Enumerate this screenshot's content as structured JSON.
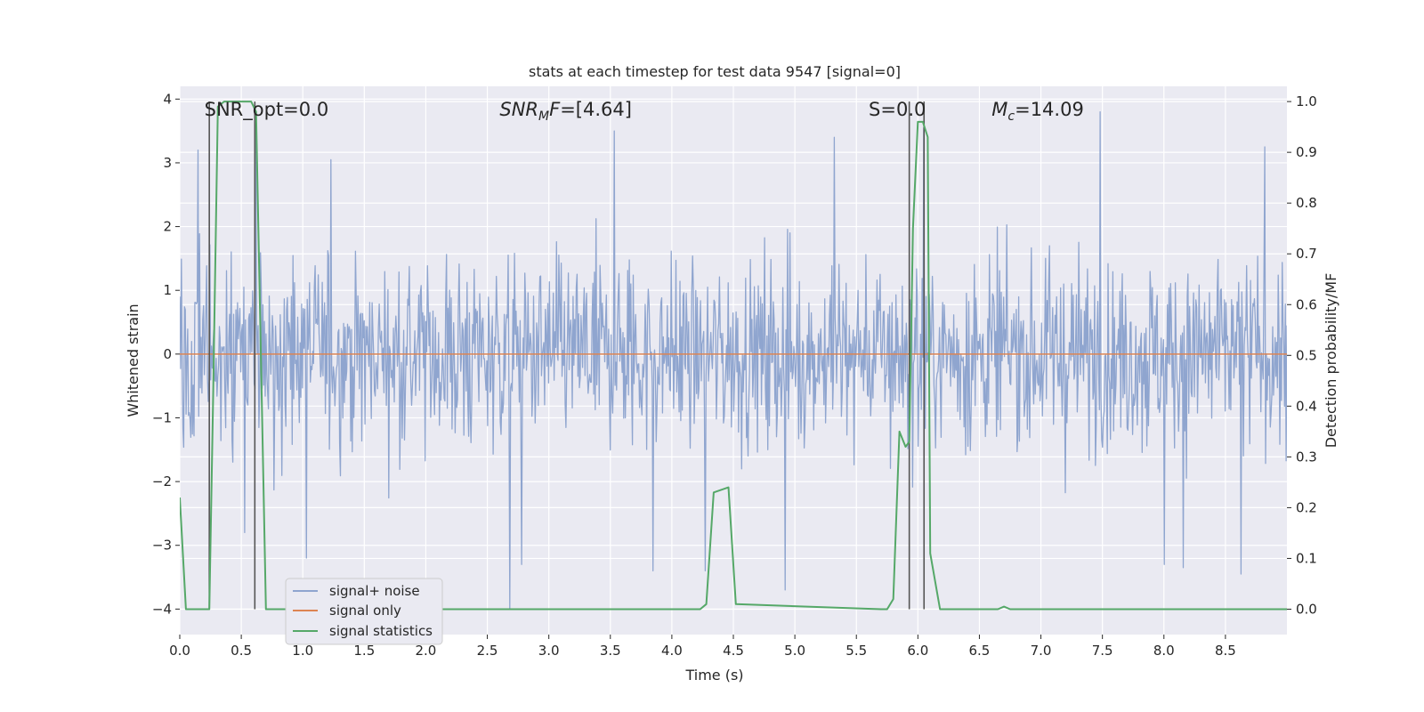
{
  "chart_data": {
    "type": "line",
    "title": "stats at each timestep for test data 9547 [signal=0]",
    "xlabel": "Time (s)",
    "ylabel_left": "Whitened strain",
    "ylabel_right": "Detection probability/MF",
    "xlim": [
      0.0,
      9.0
    ],
    "ylim_left": [
      -4.4,
      4.2
    ],
    "ylim_right": [
      -0.05,
      1.03
    ],
    "x_ticks": [
      0.0,
      0.5,
      1.0,
      1.5,
      2.0,
      2.5,
      3.0,
      3.5,
      4.0,
      4.5,
      5.0,
      5.5,
      6.0,
      6.5,
      7.0,
      7.5,
      8.0,
      8.5
    ],
    "x_tick_labels": [
      "0.0",
      "0.5",
      "1.0",
      "1.5",
      "2.0",
      "2.5",
      "3.0",
      "3.5",
      "4.0",
      "4.5",
      "5.0",
      "5.5",
      "6.0",
      "6.5",
      "7.0",
      "7.5",
      "8.0",
      "8.5"
    ],
    "y_left_ticks": [
      4,
      3,
      2,
      1,
      0,
      -1,
      -2,
      -3,
      -4
    ],
    "y_left_tick_labels": [
      "4",
      "3",
      "2",
      "1",
      "0",
      "−1",
      "−2",
      "−3",
      "−4"
    ],
    "y_right_ticks": [
      1.0,
      0.9,
      0.8,
      0.7,
      0.6,
      0.5,
      0.4,
      0.3,
      0.2,
      0.1,
      0.0
    ],
    "y_right_tick_labels": [
      "1.0",
      "0.9",
      "0.8",
      "0.7",
      "0.6",
      "0.5",
      "0.4",
      "0.3",
      "0.2",
      "0.1",
      "0.0"
    ],
    "grid": true,
    "legend_position": "lower-left",
    "colors": {
      "noise": "#8fa5cf",
      "signal": "#dd8452",
      "stats": "#55a868",
      "vline": "#555555",
      "background": "#eaeaf2",
      "grid": "#ffffff"
    },
    "annotations": [
      {
        "text": "SNR_opt=0.0",
        "x": 0.2,
        "y": 3.85
      },
      {
        "base": "SNR",
        "sub": "M",
        "rest": "F=[4.64]",
        "x": 2.6,
        "y": 3.85
      },
      {
        "text": "S=0.0",
        "x": 5.6,
        "y": 3.85
      },
      {
        "base": "M",
        "sub": "c",
        "rest": "=14.09",
        "x": 6.6,
        "y": 3.85
      }
    ],
    "vertical_lines": [
      0.24,
      0.61,
      5.93,
      6.05
    ],
    "series": [
      {
        "name": "signal+ noise",
        "axis": "left",
        "style": "dense-noise",
        "x_range": [
          0.0,
          9.0
        ],
        "n_points": 1400,
        "std": 0.95,
        "peaks": [
          {
            "x": 0.15,
            "y": 3.2
          },
          {
            "x": 0.62,
            "y": 3.75
          },
          {
            "x": 1.23,
            "y": 3.05
          },
          {
            "x": 3.53,
            "y": 3.5
          },
          {
            "x": 5.32,
            "y": 3.4
          },
          {
            "x": 6.05,
            "y": 3.55
          },
          {
            "x": 7.48,
            "y": 3.8
          },
          {
            "x": 8.82,
            "y": 3.25
          }
        ],
        "troughs": [
          {
            "x": 0.53,
            "y": -2.8
          },
          {
            "x": 1.03,
            "y": -3.2
          },
          {
            "x": 2.68,
            "y": -4.0
          },
          {
            "x": 2.78,
            "y": -3.3
          },
          {
            "x": 3.85,
            "y": -3.4
          },
          {
            "x": 4.27,
            "y": -3.4
          },
          {
            "x": 4.92,
            "y": -3.7
          },
          {
            "x": 8.0,
            "y": -3.3
          },
          {
            "x": 8.16,
            "y": -3.35
          },
          {
            "x": 8.63,
            "y": -3.45
          }
        ]
      },
      {
        "name": "signal only",
        "axis": "left",
        "x": [
          0.0,
          9.0
        ],
        "values": [
          0.0,
          0.0
        ]
      },
      {
        "name": "signal statistics",
        "axis": "right",
        "x": [
          0.0,
          0.05,
          0.24,
          0.27,
          0.31,
          0.36,
          0.42,
          0.5,
          0.58,
          0.62,
          0.7,
          0.75,
          4.23,
          4.28,
          4.34,
          4.46,
          4.52,
          5.7,
          5.75,
          5.8,
          5.85,
          5.9,
          5.93,
          5.96,
          6.0,
          6.04,
          6.08,
          6.1,
          6.18,
          6.6,
          6.65,
          6.7,
          6.75,
          9.0
        ],
        "values": [
          0.22,
          0.0,
          0.0,
          0.4,
          0.99,
          1.0,
          1.0,
          1.0,
          1.0,
          0.98,
          0.0,
          0.0,
          0.0,
          0.01,
          0.23,
          0.24,
          0.01,
          0.0,
          0.0,
          0.02,
          0.35,
          0.32,
          0.33,
          0.75,
          0.96,
          0.96,
          0.93,
          0.11,
          0.0,
          0.0,
          0.0,
          0.005,
          0.0,
          0.0
        ]
      }
    ]
  }
}
